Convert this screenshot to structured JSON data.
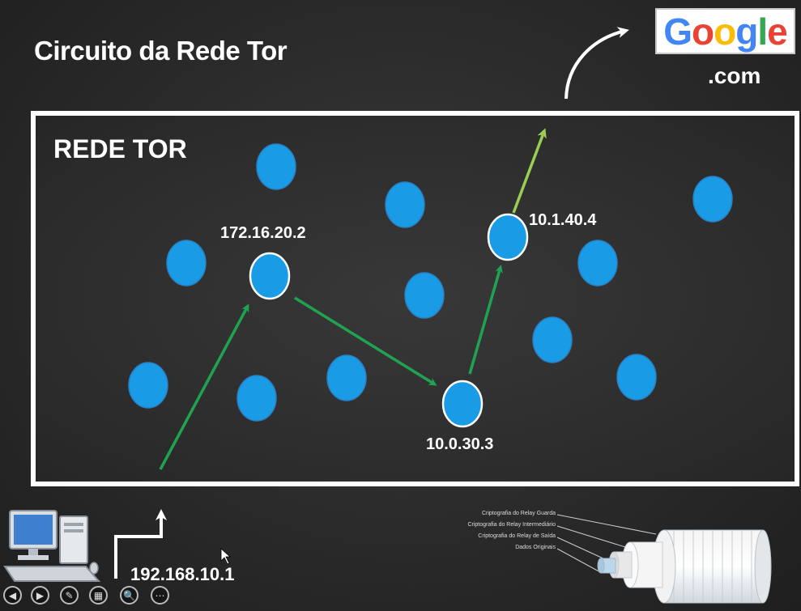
{
  "slide": {
    "title": "Circuito da Rede Tor",
    "network_label": "REDE TOR",
    "google_text": "Google",
    "google_colors": [
      "#4285F4",
      "#EA4335",
      "#FBBC05",
      "#4285F4",
      "#34A853",
      "#EA4335"
    ],
    "dotcom": ".com"
  },
  "nodes": {
    "guard_ip": "172.16.20.2",
    "middle_ip": "10.0.30.3",
    "exit_ip": "10.1.40.4",
    "client_ip": "192.168.10.1",
    "node_color": "#1a9be6",
    "path_color": "#1fa352",
    "exit_path_color": "#9acd52"
  },
  "onion_legend": {
    "layer1": "Criptografia do Relay Guarda",
    "layer2": "Criptografia do Relay Intermediário",
    "layer3": "Criptografia do Relay de Saída",
    "layer4": "Dados Originais"
  },
  "controls": {
    "prev": "◀",
    "next": "▶",
    "pen": "✎",
    "slides": "▦",
    "zoom": "🔍",
    "more": "⋯"
  }
}
